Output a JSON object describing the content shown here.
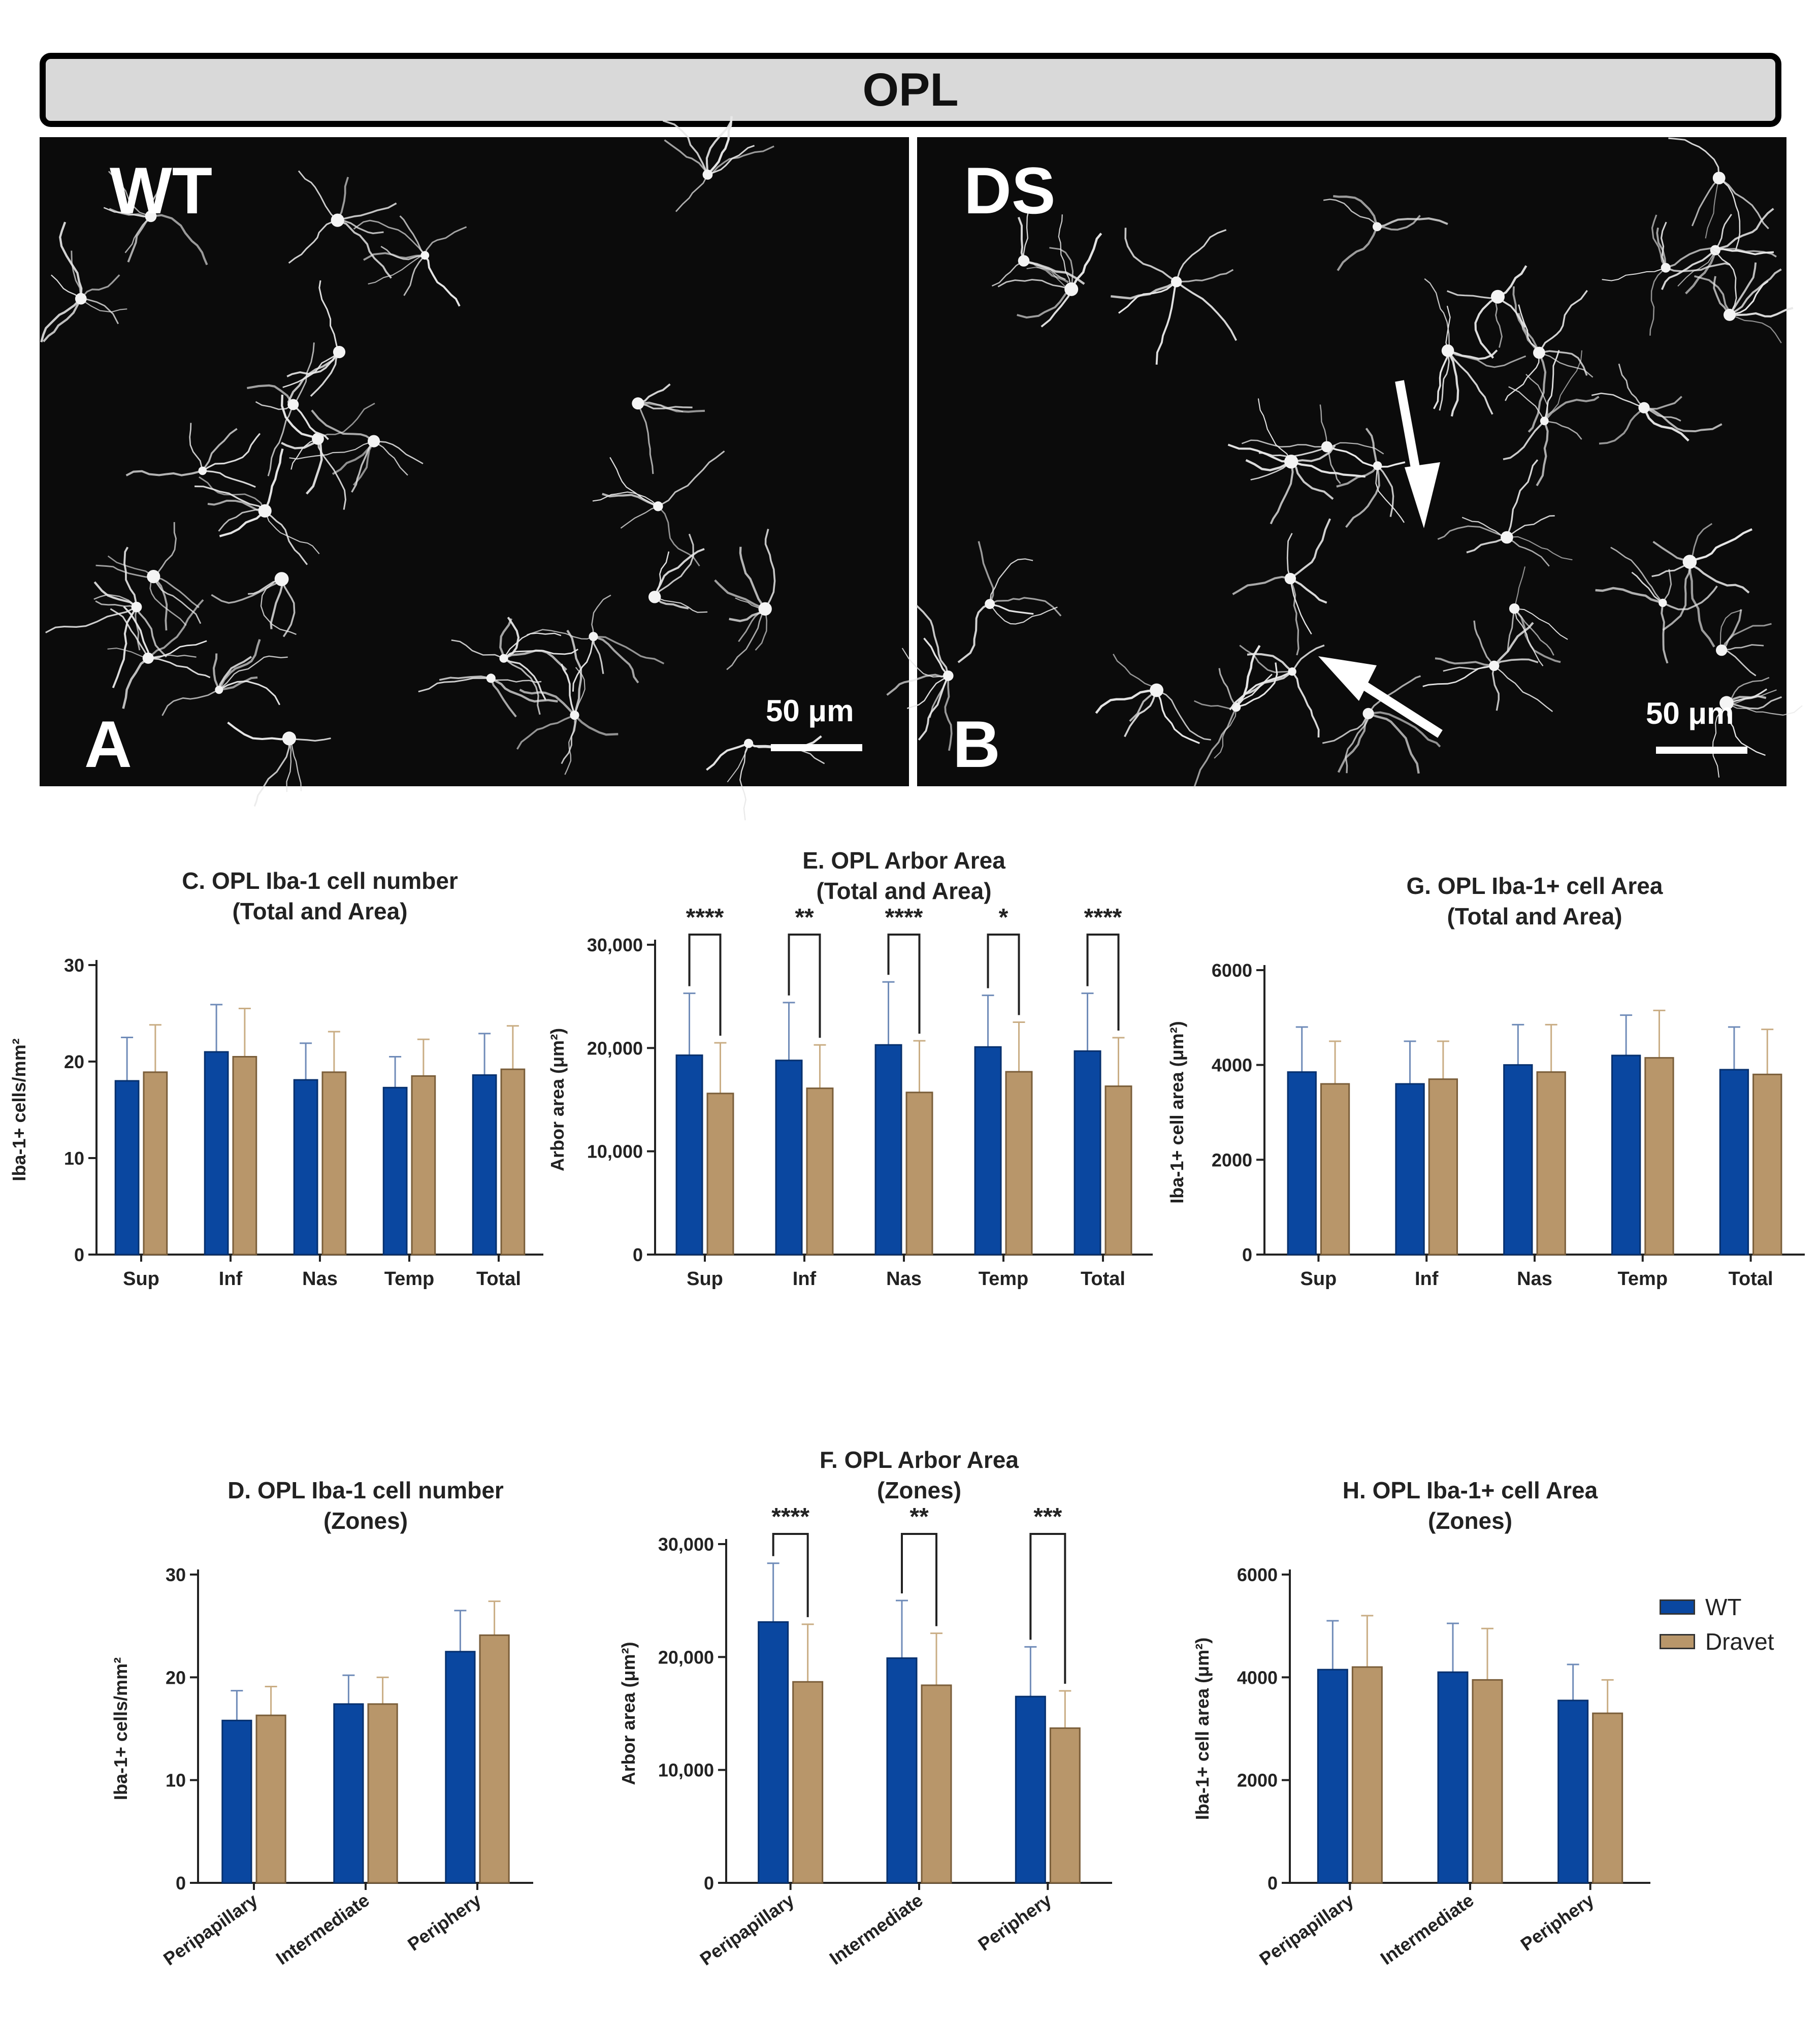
{
  "header": {
    "title": "OPL"
  },
  "panels": [
    {
      "group_label": "WT",
      "panel_letter": "A",
      "scale_label": "50 μm"
    },
    {
      "group_label": "DS",
      "panel_letter": "B",
      "scale_label": "50 μm"
    }
  ],
  "legend": [
    {
      "name": "WT",
      "color": "#0a47a0"
    },
    {
      "name": "Dravet",
      "color": "#b8966a"
    }
  ],
  "chart_data": [
    {
      "id": "C",
      "type": "bar",
      "title_line1": "C.   OPL Iba-1 cell number",
      "title_line2": "(Total and Area)",
      "ylabel": "Iba-1+ cells/mm²",
      "ylim": [
        0,
        30
      ],
      "yticks": [
        0,
        10,
        20,
        30
      ],
      "ytick_labels": [
        "0",
        "10",
        "20",
        "30"
      ],
      "categories": [
        "Sup",
        "Inf",
        "Nas",
        "Temp",
        "Total"
      ],
      "series": [
        {
          "name": "WT",
          "values": [
            18.0,
            21.0,
            18.1,
            17.3,
            18.6
          ],
          "errors": [
            4.5,
            4.9,
            3.8,
            3.2,
            4.3
          ]
        },
        {
          "name": "Dravet",
          "values": [
            18.9,
            20.5,
            18.9,
            18.5,
            19.2
          ],
          "errors": [
            4.9,
            5.0,
            4.2,
            3.8,
            4.5
          ]
        }
      ],
      "significance": []
    },
    {
      "id": "E",
      "type": "bar",
      "title_line1": "E.    OPL Arbor Area",
      "title_line2": "(Total and Area)",
      "ylabel": "Arbor area (μm²)",
      "ylim": [
        0,
        30000
      ],
      "yticks": [
        0,
        10000,
        20000,
        30000
      ],
      "ytick_labels": [
        "0",
        "10,000",
        "20,000",
        "30,000"
      ],
      "categories": [
        "Sup",
        "Inf",
        "Nas",
        "Temp",
        "Total"
      ],
      "series": [
        {
          "name": "WT",
          "values": [
            19300,
            18800,
            20300,
            20100,
            19700
          ],
          "errors": [
            6000,
            5600,
            6100,
            5000,
            5600
          ]
        },
        {
          "name": "Dravet",
          "values": [
            15600,
            16100,
            15700,
            17700,
            16300
          ],
          "errors": [
            4900,
            4200,
            5000,
            4800,
            4700
          ]
        }
      ],
      "significance": [
        "****",
        "**",
        "****",
        "*",
        "****"
      ]
    },
    {
      "id": "G",
      "type": "bar",
      "title_line1": "G.   OPL Iba-1+ cell Area",
      "title_line2": "(Total and Area)",
      "ylabel": "Iba-1+ cell area (μm²)",
      "ylim": [
        0,
        6000
      ],
      "yticks": [
        0,
        2000,
        4000,
        6000
      ],
      "ytick_labels": [
        "0",
        "2000",
        "4000",
        "6000"
      ],
      "categories": [
        "Sup",
        "Inf",
        "Nas",
        "Temp",
        "Total"
      ],
      "series": [
        {
          "name": "WT",
          "values": [
            3850,
            3600,
            4000,
            4200,
            3900
          ],
          "errors": [
            950,
            900,
            850,
            850,
            900
          ]
        },
        {
          "name": "Dravet",
          "values": [
            3600,
            3700,
            3850,
            4150,
            3800
          ],
          "errors": [
            900,
            800,
            1000,
            1000,
            950
          ]
        }
      ],
      "significance": []
    },
    {
      "id": "D",
      "type": "bar",
      "title_line1": "D.    OPL Iba-1 cell number",
      "title_line2": "(Zones)",
      "ylabel": "Iba-1+ cells/mm²",
      "ylim": [
        0,
        30
      ],
      "yticks": [
        0,
        10,
        20,
        30
      ],
      "ytick_labels": [
        "0",
        "10",
        "20",
        "30"
      ],
      "categories": [
        "Peripapillary",
        "Intermediate",
        "Periphery"
      ],
      "series": [
        {
          "name": "WT",
          "values": [
            15.8,
            17.4,
            22.5
          ],
          "errors": [
            2.9,
            2.8,
            4.0
          ]
        },
        {
          "name": "Dravet",
          "values": [
            16.3,
            17.4,
            24.1
          ],
          "errors": [
            2.8,
            2.6,
            3.3
          ]
        }
      ],
      "significance": []
    },
    {
      "id": "F",
      "type": "bar",
      "title_line1": "F.    OPL Arbor Area",
      "title_line2": "(Zones)",
      "ylabel": "Arbor area (μm²)",
      "ylim": [
        0,
        30000
      ],
      "yticks": [
        0,
        10000,
        20000,
        30000
      ],
      "ytick_labels": [
        "0",
        "10,000",
        "20,000",
        "30,000"
      ],
      "categories": [
        "Peripapillary",
        "Intermediate",
        "Periphery"
      ],
      "series": [
        {
          "name": "WT",
          "values": [
            23100,
            19900,
            16500
          ],
          "errors": [
            5200,
            5100,
            4400
          ]
        },
        {
          "name": "Dravet",
          "values": [
            17800,
            17500,
            13700
          ],
          "errors": [
            5100,
            4600,
            3300
          ]
        }
      ],
      "significance": [
        "****",
        "**",
        "***"
      ]
    },
    {
      "id": "H",
      "type": "bar",
      "title_line1": "H. OPL Iba-1+ cell Area",
      "title_line2": "(Zones)",
      "ylabel": "Iba-1+ cell area (μm²)",
      "ylim": [
        0,
        6000
      ],
      "yticks": [
        0,
        2000,
        4000,
        6000
      ],
      "ytick_labels": [
        "0",
        "2000",
        "4000",
        "6000"
      ],
      "categories": [
        "Peripapillary",
        "Intermediate",
        "Periphery"
      ],
      "series": [
        {
          "name": "WT",
          "values": [
            4150,
            4100,
            3550
          ],
          "errors": [
            950,
            950,
            700
          ]
        },
        {
          "name": "Dravet",
          "values": [
            4200,
            3950,
            3300
          ],
          "errors": [
            1000,
            1000,
            650
          ]
        }
      ],
      "significance": []
    }
  ]
}
